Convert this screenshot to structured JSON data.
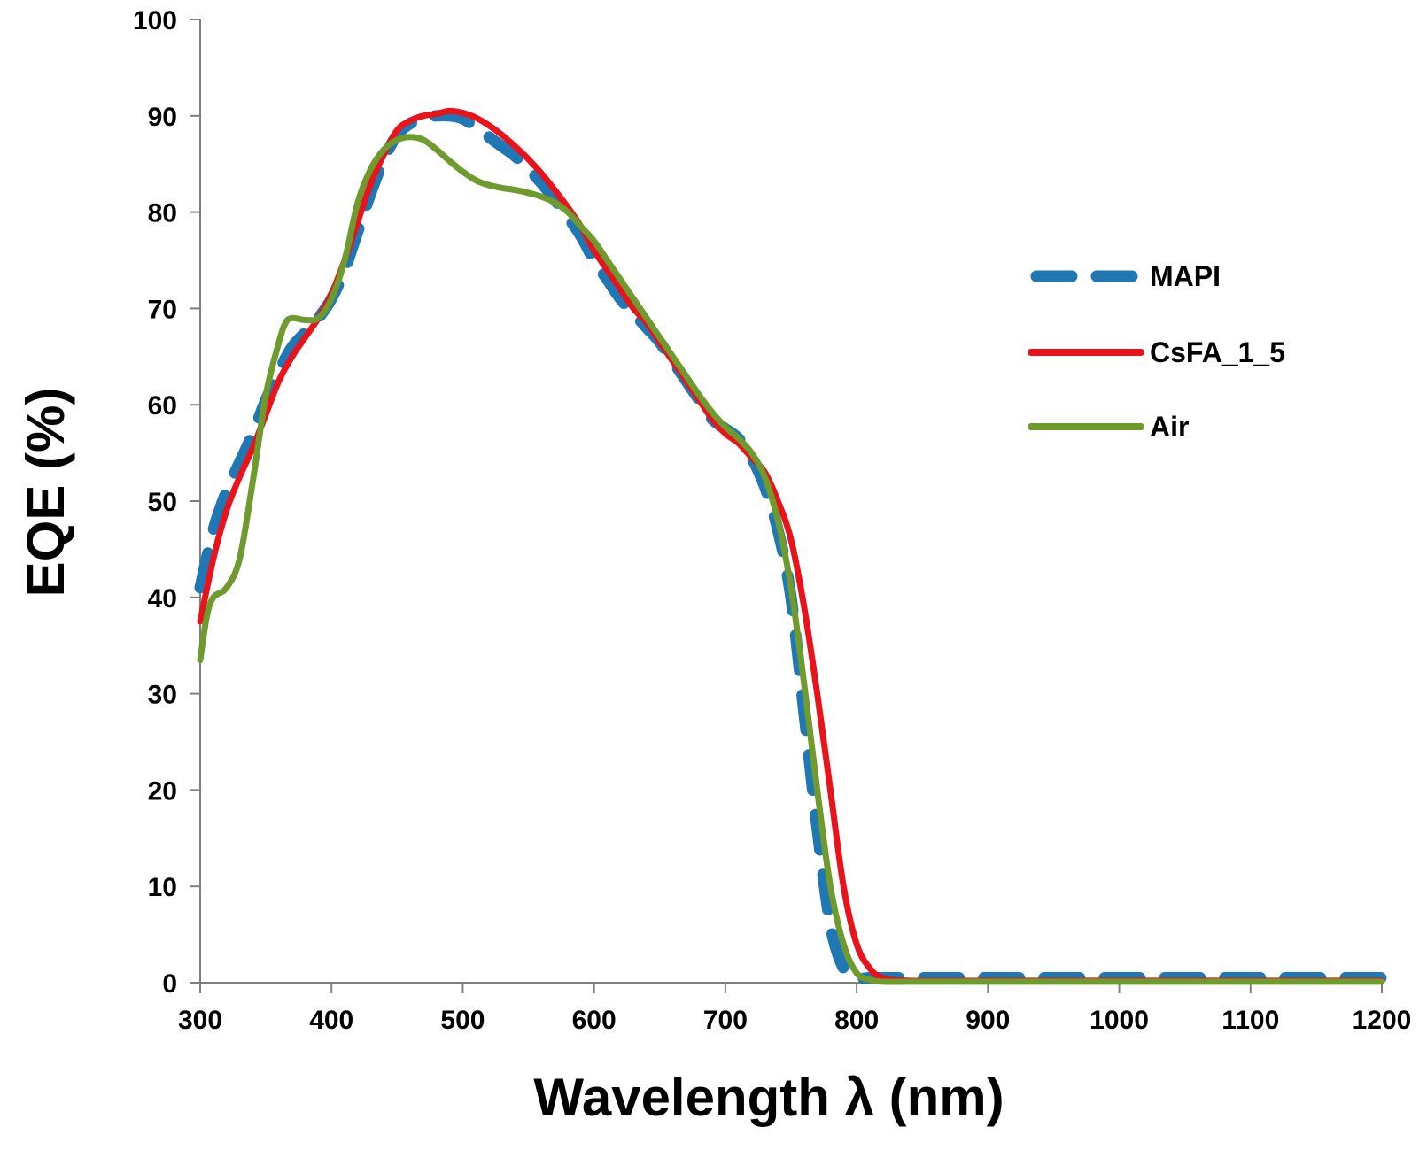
{
  "chart_data": {
    "type": "line",
    "title": "",
    "xlabel": "Wavelength λ (nm)",
    "ylabel": "EQE (%)",
    "xlim": [
      300,
      1200
    ],
    "ylim": [
      0,
      100
    ],
    "x_ticks": [
      300,
      400,
      500,
      600,
      700,
      800,
      900,
      1000,
      1100,
      1200
    ],
    "y_ticks": [
      0,
      10,
      20,
      30,
      40,
      50,
      60,
      70,
      80,
      90,
      100
    ],
    "grid": false,
    "legend_position": "right",
    "series": [
      {
        "name": "MAPI",
        "color": "#1f77b4",
        "style": "dashed",
        "x": [
          300,
          310,
          320,
          330,
          340,
          350,
          360,
          370,
          380,
          390,
          400,
          410,
          420,
          430,
          440,
          450,
          460,
          470,
          480,
          490,
          500,
          510,
          520,
          530,
          540,
          550,
          560,
          570,
          580,
          590,
          600,
          610,
          620,
          630,
          640,
          650,
          660,
          670,
          680,
          690,
          700,
          710,
          720,
          730,
          740,
          750,
          760,
          770,
          780,
          790,
          800,
          810,
          820,
          840,
          900,
          1000,
          1100,
          1200
        ],
        "y": [
          41,
          47,
          51,
          54,
          57,
          60.5,
          63.5,
          66,
          67.5,
          69,
          71,
          74,
          78,
          82,
          85.5,
          88,
          89.2,
          89.8,
          90,
          90,
          89.7,
          88.8,
          87.8,
          86.8,
          85.8,
          84.5,
          83,
          81.3,
          79.5,
          77.5,
          75,
          73,
          71,
          69.5,
          68,
          66.5,
          64.5,
          62.5,
          60.5,
          58.5,
          57.5,
          56.5,
          54.5,
          51.5,
          47,
          40,
          28,
          16,
          6,
          1.5,
          0.5,
          0.5,
          0.5,
          0.5,
          0.5,
          0.5,
          0.5,
          0.5
        ]
      },
      {
        "name": "CsFA_1_5",
        "color": "#e8131b",
        "style": "solid",
        "x": [
          300,
          310,
          320,
          330,
          340,
          350,
          360,
          370,
          380,
          390,
          400,
          410,
          420,
          430,
          440,
          450,
          460,
          470,
          480,
          490,
          500,
          510,
          520,
          530,
          540,
          550,
          560,
          570,
          580,
          590,
          600,
          610,
          620,
          630,
          640,
          650,
          660,
          670,
          680,
          690,
          700,
          710,
          720,
          730,
          740,
          750,
          760,
          770,
          780,
          790,
          800,
          810,
          820,
          840,
          900,
          1000,
          1100,
          1200
        ],
        "y": [
          37.5,
          44,
          49,
          52.5,
          55.5,
          59,
          62.5,
          65,
          67,
          69,
          71.5,
          75,
          79,
          83,
          86,
          88.5,
          89.5,
          90,
          90.2,
          90.5,
          90.3,
          89.8,
          89,
          88,
          86.8,
          85.5,
          84,
          82.3,
          80.5,
          78.5,
          76,
          74,
          72,
          70,
          68.5,
          66.5,
          64.5,
          62.5,
          60.5,
          58.5,
          57,
          56,
          54.5,
          53,
          50,
          46,
          39,
          30,
          20,
          10,
          4,
          1.5,
          0.5,
          0.2,
          0.2,
          0.2,
          0.2,
          0.2
        ]
      },
      {
        "name": "Air",
        "color": "#6e9a2e",
        "style": "solid",
        "x": [
          300,
          305,
          310,
          320,
          330,
          340,
          350,
          360,
          365,
          370,
          380,
          390,
          400,
          410,
          420,
          430,
          440,
          450,
          460,
          470,
          480,
          490,
          500,
          510,
          520,
          530,
          540,
          550,
          560,
          570,
          580,
          590,
          600,
          610,
          620,
          630,
          640,
          650,
          660,
          670,
          680,
          690,
          700,
          710,
          720,
          730,
          740,
          750,
          760,
          770,
          780,
          790,
          800,
          810,
          820,
          840,
          900,
          1000,
          1100,
          1200
        ],
        "y": [
          33.5,
          38,
          40,
          41,
          44,
          52,
          61,
          66.5,
          68.5,
          69,
          68.8,
          69,
          71,
          75,
          81,
          84.5,
          86.5,
          87.5,
          87.8,
          87.5,
          86.5,
          85.3,
          84.2,
          83.3,
          82.8,
          82.5,
          82.3,
          82,
          81.6,
          81,
          80,
          78.5,
          77,
          75,
          73,
          71,
          69,
          67,
          65,
          63,
          61,
          59.2,
          57.7,
          56.5,
          55,
          52.5,
          48,
          41,
          31,
          20,
          10,
          4,
          1,
          0.3,
          0.1,
          0.1,
          0.1,
          0.1,
          0.1,
          0.1
        ]
      }
    ]
  }
}
